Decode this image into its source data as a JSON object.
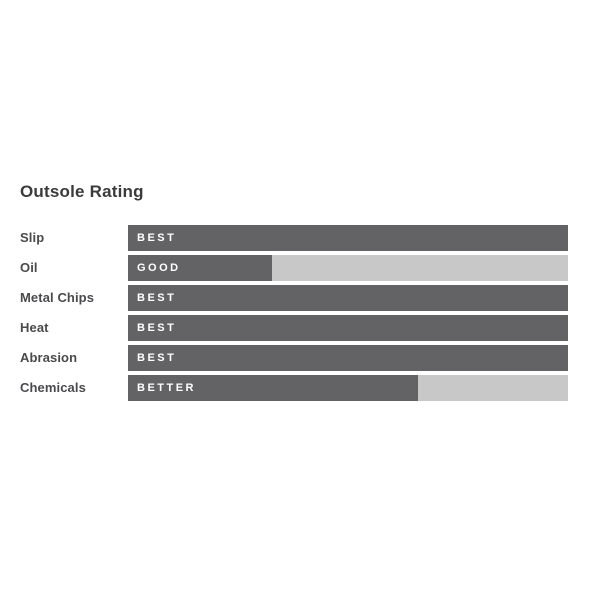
{
  "chart_data": {
    "type": "bar",
    "orientation": "horizontal",
    "title": "Outsole Rating",
    "categories": [
      "Slip",
      "Oil",
      "Metal Chips",
      "Heat",
      "Abrasion",
      "Chemicals"
    ],
    "ratings": [
      "BEST",
      "GOOD",
      "BEST",
      "BEST",
      "BEST",
      "BETTER"
    ],
    "values_percent": [
      100,
      32.7,
      100,
      100,
      100,
      65.9
    ],
    "rating_scale": {
      "GOOD": 33,
      "BETTER": 66,
      "BEST": 100
    },
    "legend": "none",
    "grid": "off",
    "colors": {
      "bar_fill": "#636366",
      "bar_track": "#c8c8c8",
      "bar_label_text": "#ffffff",
      "category_text": "#4a4a4d",
      "title_text": "#3b3b3d",
      "background": "#ffffff"
    }
  }
}
